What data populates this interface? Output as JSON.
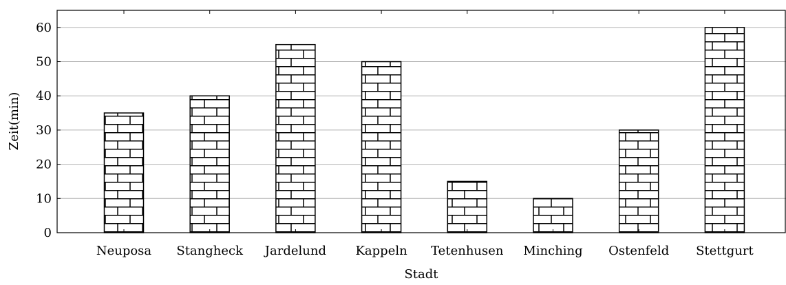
{
  "chart_data": {
    "type": "bar",
    "categories": [
      "Neuposa",
      "Stangheck",
      "Jardelund",
      "Kappeln",
      "Tetenhusen",
      "Minching",
      "Ostenfeld",
      "Stettgurt"
    ],
    "values": [
      35,
      40,
      55,
      50,
      15,
      10,
      30,
      60
    ],
    "xlabel": "Stadt",
    "ylabel": "Zeit(min)",
    "ylim": [
      0,
      65
    ],
    "yticks": [
      0,
      10,
      20,
      30,
      40,
      50,
      60
    ],
    "grid": "horizontal",
    "bar_fill": "brick-pattern",
    "colors": {
      "bar_stroke": "#000000",
      "grid": "#b0b0b0",
      "axis": "#000000"
    }
  }
}
